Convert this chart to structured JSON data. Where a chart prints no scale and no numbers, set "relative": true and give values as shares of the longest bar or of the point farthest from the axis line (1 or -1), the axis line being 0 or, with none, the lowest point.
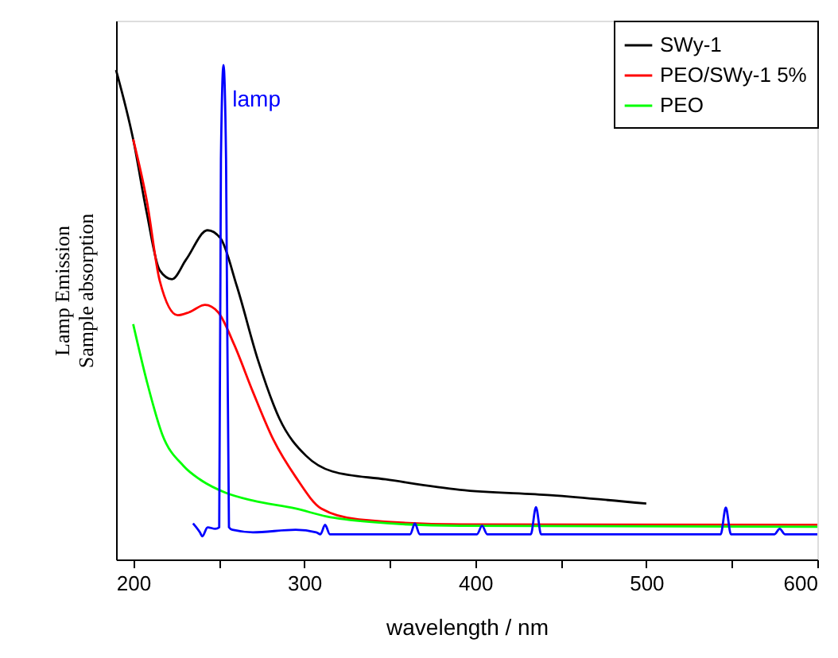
{
  "chart_data": {
    "type": "line",
    "relative": true,
    "xlabel": "wavelength / nm",
    "ylabel": "Lamp Emission\nSample absorption",
    "xlim": [
      190,
      600
    ],
    "xticks": [
      200,
      {
        "value": 250,
        "label": null
      },
      300,
      {
        "value": 350,
        "label": null
      },
      400,
      {
        "value": 450,
        "label": null
      },
      500,
      {
        "value": 550,
        "label": null
      },
      600
    ],
    "grid": false,
    "legend": "top right",
    "marker": "none",
    "line_style": "solid",
    "annotations": [
      {
        "text": "lamp",
        "x": 258,
        "y": 0.93
      }
    ],
    "series": [
      {
        "name": "SWy-1",
        "color": "#000000",
        "x": [
          190,
          200,
          208,
          215.5,
          222.7,
          231,
          243.5,
          251,
          260.6,
          273,
          285.5,
          301,
          316.5,
          347.6,
          391,
          444,
          500
        ],
        "values": [
          0.99,
          0.85,
          0.7,
          0.585,
          0.567,
          0.607,
          0.666,
          0.65,
          0.553,
          0.403,
          0.285,
          0.21,
          0.178,
          0.162,
          0.141,
          0.13,
          0.113
        ]
      },
      {
        "name": "PEO/SWy-1 5%",
        "color": "#ff0000",
        "x": [
          200,
          208,
          215.5,
          226,
          232.6,
          242,
          249.7,
          259,
          270,
          282,
          295,
          310,
          332,
          391,
          600
        ],
        "values": [
          0.85,
          0.725,
          0.564,
          0.494,
          0.5,
          0.515,
          0.5,
          0.435,
          0.339,
          0.242,
          0.167,
          0.103,
          0.081,
          0.071,
          0.07
        ]
      },
      {
        "name": "PEO",
        "color": "#00ff00",
        "x": [
          200,
          208,
          217,
          229.5,
          239,
          254,
          270,
          295,
          313,
          338,
          391,
          600
        ],
        "values": [
          0.476,
          0.36,
          0.253,
          0.189,
          0.162,
          0.135,
          0.119,
          0.103,
          0.087,
          0.076,
          0.068,
          0.066
        ]
      },
      {
        "name": null,
        "color": "#0000ff",
        "x": [
          235,
          239,
          240.4,
          243.5,
          248,
          250.3,
          251.3,
          252.8,
          254.3,
          256,
          258,
          270,
          295,
          307,
          309.5,
          312.2,
          315,
          362,
          364.7,
          367.5,
          401,
          404,
          407,
          432.5,
          435.5,
          438.5,
          543.5,
          546.5,
          549.5,
          575,
          578,
          581,
          600
        ],
        "values": [
          0.073,
          0.055,
          0.047,
          0.065,
          0.062,
          0.065,
          0.81,
          1.0,
          0.81,
          0.065,
          0.06,
          0.055,
          0.06,
          0.055,
          0.051,
          0.07,
          0.051,
          0.051,
          0.073,
          0.051,
          0.051,
          0.068,
          0.051,
          0.051,
          0.106,
          0.051,
          0.051,
          0.105,
          0.051,
          0.051,
          0.062,
          0.051,
          0.051
        ]
      }
    ]
  }
}
